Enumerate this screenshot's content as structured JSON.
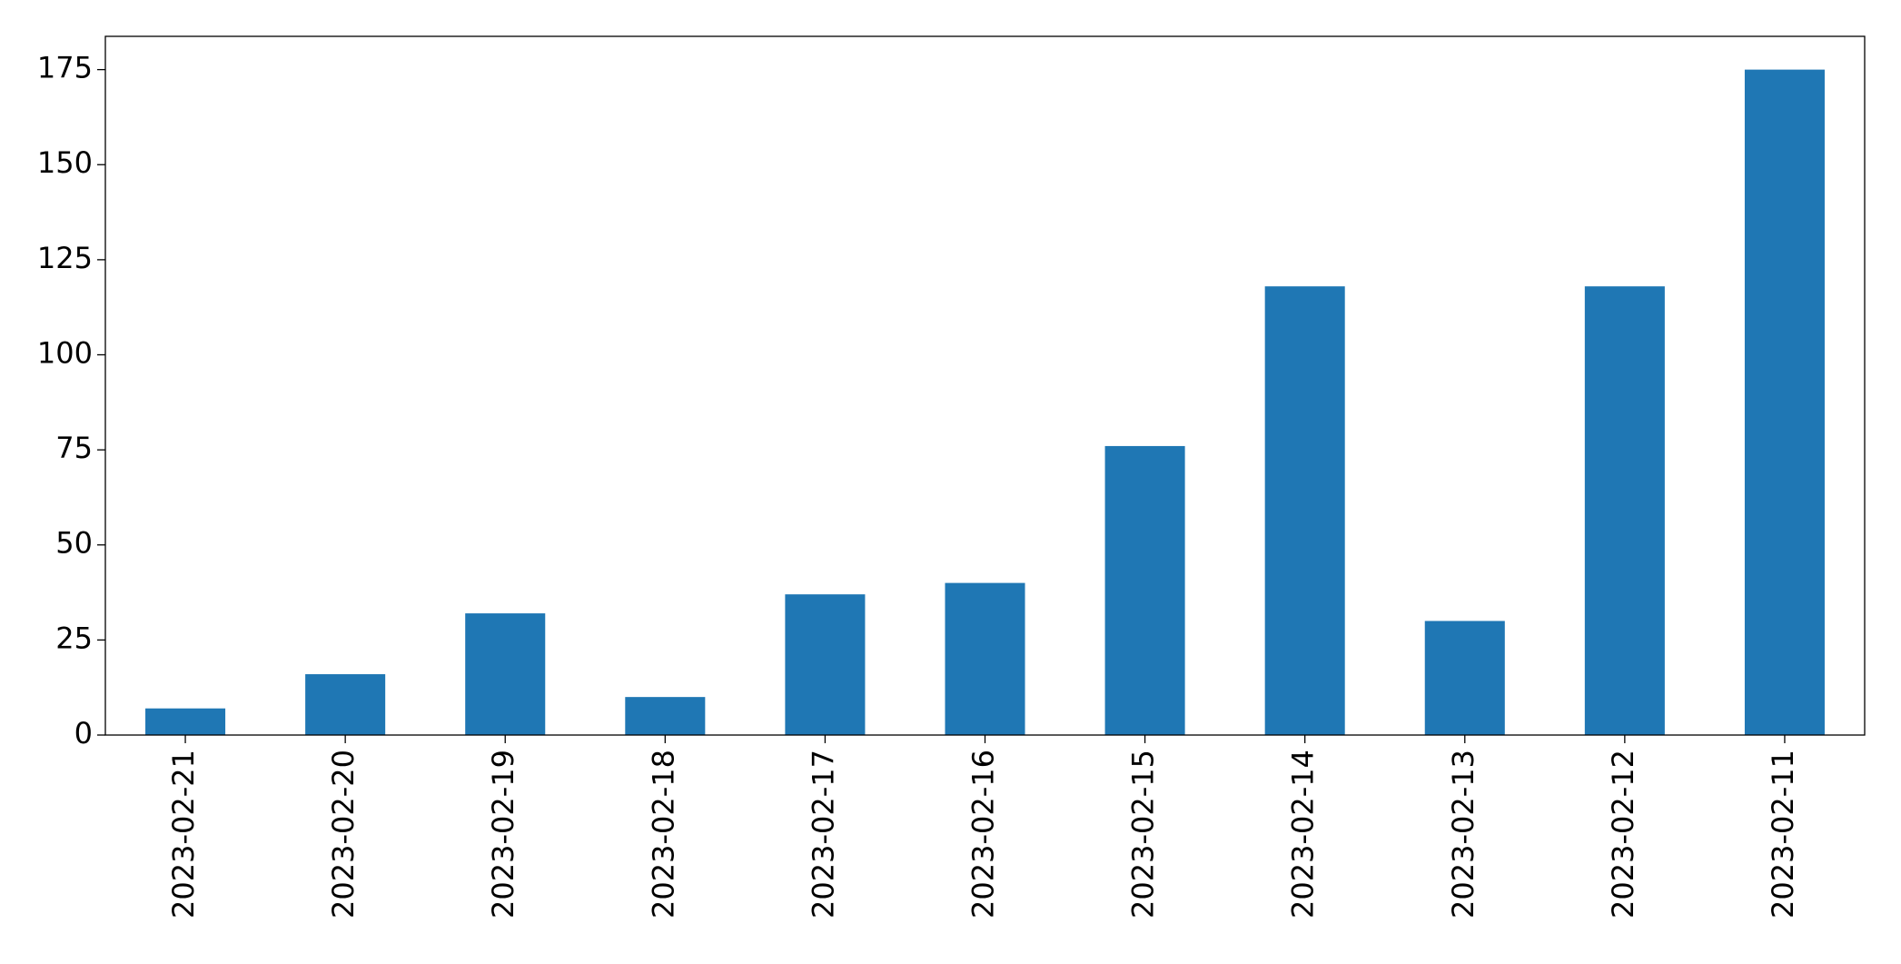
{
  "chart_data": {
    "type": "bar",
    "categories": [
      "2023-02-21",
      "2023-02-20",
      "2023-02-19",
      "2023-02-18",
      "2023-02-17",
      "2023-02-16",
      "2023-02-15",
      "2023-02-14",
      "2023-02-13",
      "2023-02-12",
      "2023-02-11"
    ],
    "values": [
      7,
      16,
      32,
      10,
      37,
      40,
      76,
      118,
      30,
      118,
      175
    ],
    "color": "#1f77b4",
    "ylim": [
      0,
      183.75
    ],
    "yticks": [
      0,
      25,
      50,
      75,
      100,
      125,
      150,
      175
    ],
    "grid": false
  }
}
